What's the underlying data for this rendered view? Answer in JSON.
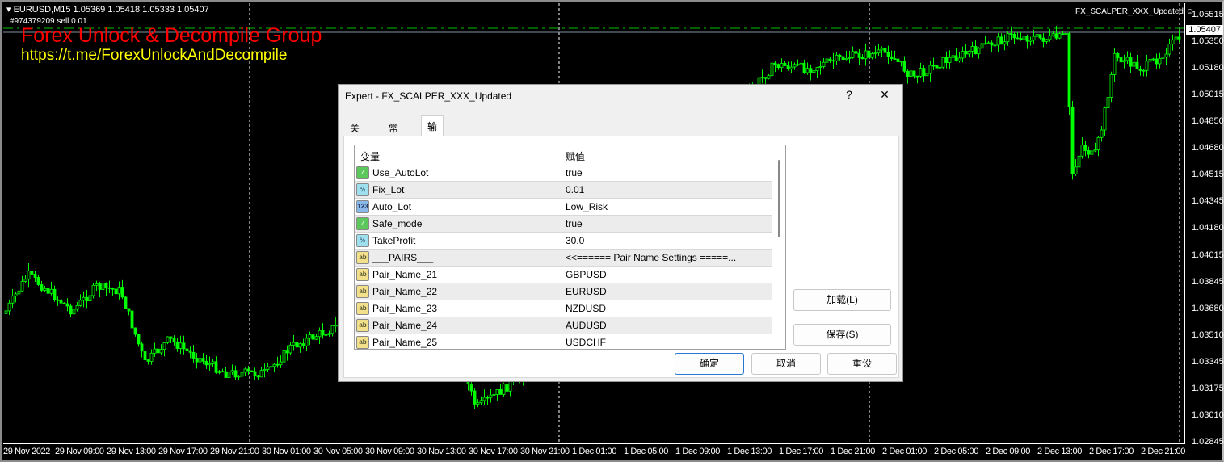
{
  "chart": {
    "symbol_line": "EURUSD,M15  1.05369 1.05418 1.05333 1.05407",
    "order_line": "#974379209 sell 0.01",
    "ea_name": "FX_SCALPER_XXX_Updated",
    "ea_icon": "smiley-icon",
    "watermark_title": "Forex Unlock & Decompile Group",
    "watermark_url": "https://t.me/ForexUnlockAndDecompile",
    "current_price": "1.05407",
    "price_ticks": [
      "1.05515",
      "1.05350",
      "1.05180",
      "1.05015",
      "1.04850",
      "1.04680",
      "1.04515",
      "1.04345",
      "1.04180",
      "1.04015",
      "1.03845",
      "1.03680",
      "1.03510",
      "1.03345",
      "1.03175",
      "1.03010",
      "1.02845"
    ],
    "time_ticks": [
      "29 Nov 2022",
      "29 Nov 09:00",
      "29 Nov 13:00",
      "29 Nov 17:00",
      "29 Nov 21:00",
      "30 Nov 01:00",
      "30 Nov 05:00",
      "30 Nov 09:00",
      "30 Nov 13:00",
      "30 Nov 17:00",
      "30 Nov 21:00",
      "1 Dec 01:00",
      "1 Dec 05:00",
      "1 Dec 09:00",
      "1 Dec 13:00",
      "1 Dec 17:00",
      "1 Dec 21:00",
      "2 Dec 01:00",
      "2 Dec 05:00",
      "2 Dec 09:00",
      "2 Dec 13:00",
      "2 Dec 17:00",
      "2 Dec 21:00"
    ],
    "colors": {
      "background": "#000000",
      "candle": "#00ff00",
      "order_line": "#00c000",
      "watermark_title": "#ff0000",
      "watermark_url": "#ffff00"
    }
  },
  "dialog": {
    "title": "Expert - FX_SCALPER_XXX_Updated",
    "help": "?",
    "close": "✕",
    "tabs": [
      {
        "label": "关于"
      },
      {
        "label": "常用"
      },
      {
        "label": "输入参数",
        "active": true
      }
    ],
    "columns": {
      "variable": "变量",
      "value": "赋值"
    },
    "params": [
      {
        "type": "bool",
        "icon": "bool-icon",
        "name": "Use_AutoLot",
        "value": "true"
      },
      {
        "type": "dbl",
        "icon": "double-icon",
        "name": "Fix_Lot",
        "value": "0.01"
      },
      {
        "type": "int",
        "icon": "enum-icon",
        "name": "Auto_Lot",
        "value": "Low_Risk"
      },
      {
        "type": "bool",
        "icon": "bool-icon",
        "name": "Safe_mode",
        "value": "true"
      },
      {
        "type": "dbl",
        "icon": "double-icon",
        "name": "TakeProfit",
        "value": "30.0"
      },
      {
        "type": "str",
        "icon": "string-icon",
        "name": "___PAIRS___",
        "value": "<<====== Pair Name Settings =====..."
      },
      {
        "type": "str",
        "icon": "string-icon",
        "name": "Pair_Name_21",
        "value": "GBPUSD"
      },
      {
        "type": "str",
        "icon": "string-icon",
        "name": "Pair_Name_22",
        "value": "EURUSD"
      },
      {
        "type": "str",
        "icon": "string-icon",
        "name": "Pair_Name_23",
        "value": "NZDUSD"
      },
      {
        "type": "str",
        "icon": "string-icon",
        "name": "Pair_Name_24",
        "value": "AUDUSD"
      },
      {
        "type": "str",
        "icon": "string-icon",
        "name": "Pair_Name_25",
        "value": "USDCHF"
      }
    ],
    "buttons": {
      "load": "加载(L)",
      "save": "保存(S)",
      "ok": "确定",
      "cancel": "取消",
      "reset": "重设"
    }
  }
}
